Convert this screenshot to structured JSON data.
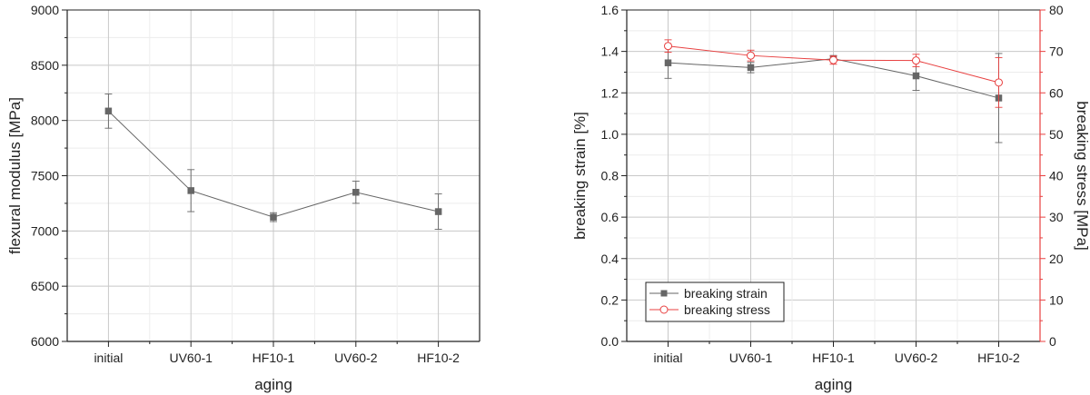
{
  "chart_data": [
    {
      "type": "line",
      "categories": [
        "initial",
        "UV60-1",
        "HF10-1",
        "UV60-2",
        "HF10-2"
      ],
      "xlabel": "aging",
      "ylabel": "flexural modulus [MPa]",
      "ylim": [
        6000,
        9000
      ],
      "yticks": [
        6000,
        6500,
        7000,
        7500,
        8000,
        8500,
        9000
      ],
      "grid": true,
      "series": [
        {
          "name": "flexural modulus",
          "values": [
            8085,
            7365,
            7125,
            7350,
            7175
          ],
          "errors": [
            155,
            190,
            40,
            100,
            160
          ],
          "color": "#666666",
          "marker": "filled-square"
        }
      ]
    },
    {
      "type": "line",
      "categories": [
        "initial",
        "UV60-1",
        "HF10-1",
        "UV60-2",
        "HF10-2"
      ],
      "xlabel": "aging",
      "ylabel": "breaking strain [%]",
      "ylim": [
        0.0,
        1.6
      ],
      "yticks": [
        "0.0",
        "0.2",
        "0.4",
        "0.6",
        "0.8",
        "1.0",
        "1.2",
        "1.4",
        "1.6"
      ],
      "y2label": "breaking stress [MPa]",
      "y2lim": [
        0,
        80
      ],
      "y2ticks": [
        0,
        10,
        20,
        30,
        40,
        50,
        60,
        70,
        80
      ],
      "grid": true,
      "legend_position": "bottom-left",
      "series": [
        {
          "name": "breaking strain",
          "axis": "left",
          "values": [
            1.345,
            1.322,
            1.365,
            1.282,
            1.175
          ],
          "errors": [
            0.075,
            0.025,
            0.015,
            0.07,
            0.215
          ],
          "color": "#666666",
          "marker": "filled-square"
        },
        {
          "name": "breaking stress",
          "axis": "right",
          "values": [
            71.3,
            69.0,
            67.9,
            67.8,
            62.5
          ],
          "errors": [
            1.5,
            1.3,
            1.0,
            1.5,
            6.0
          ],
          "color": "#e84040",
          "marker": "open-circle"
        }
      ]
    }
  ]
}
